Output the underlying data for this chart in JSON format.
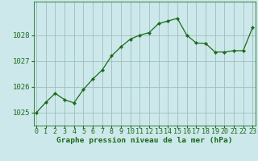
{
  "x": [
    0,
    1,
    2,
    3,
    4,
    5,
    6,
    7,
    8,
    9,
    10,
    11,
    12,
    13,
    14,
    15,
    16,
    17,
    18,
    19,
    20,
    21,
    22,
    23
  ],
  "y": [
    1025.0,
    1025.4,
    1025.75,
    1025.5,
    1025.38,
    1025.9,
    1026.3,
    1026.65,
    1027.2,
    1027.55,
    1027.85,
    1028.0,
    1028.1,
    1028.45,
    1028.55,
    1028.65,
    1028.0,
    1027.7,
    1027.68,
    1027.35,
    1027.35,
    1027.4,
    1027.4,
    1028.3
  ],
  "line_color": "#1a6b1a",
  "marker_color": "#1a6b1a",
  "bg_color": "#cde8ea",
  "grid_color": "#9bbfc2",
  "bottom_label": "Graphe pression niveau de la mer (hPa)",
  "xlabel_ticks": [
    "0",
    "1",
    "2",
    "3",
    "4",
    "5",
    "6",
    "7",
    "8",
    "9",
    "10",
    "11",
    "12",
    "13",
    "14",
    "15",
    "16",
    "17",
    "18",
    "19",
    "20",
    "21",
    "22",
    "23"
  ],
  "yticks": [
    1025,
    1026,
    1027,
    1028
  ],
  "ylim": [
    1024.5,
    1029.3
  ],
  "xlim": [
    -0.3,
    23.3
  ],
  "title_color": "#1a6b1a",
  "tick_color": "#1a6b1a",
  "bottom_fontsize": 6.8,
  "tick_fontsize": 6.0,
  "ytick_fontsize": 6.5
}
